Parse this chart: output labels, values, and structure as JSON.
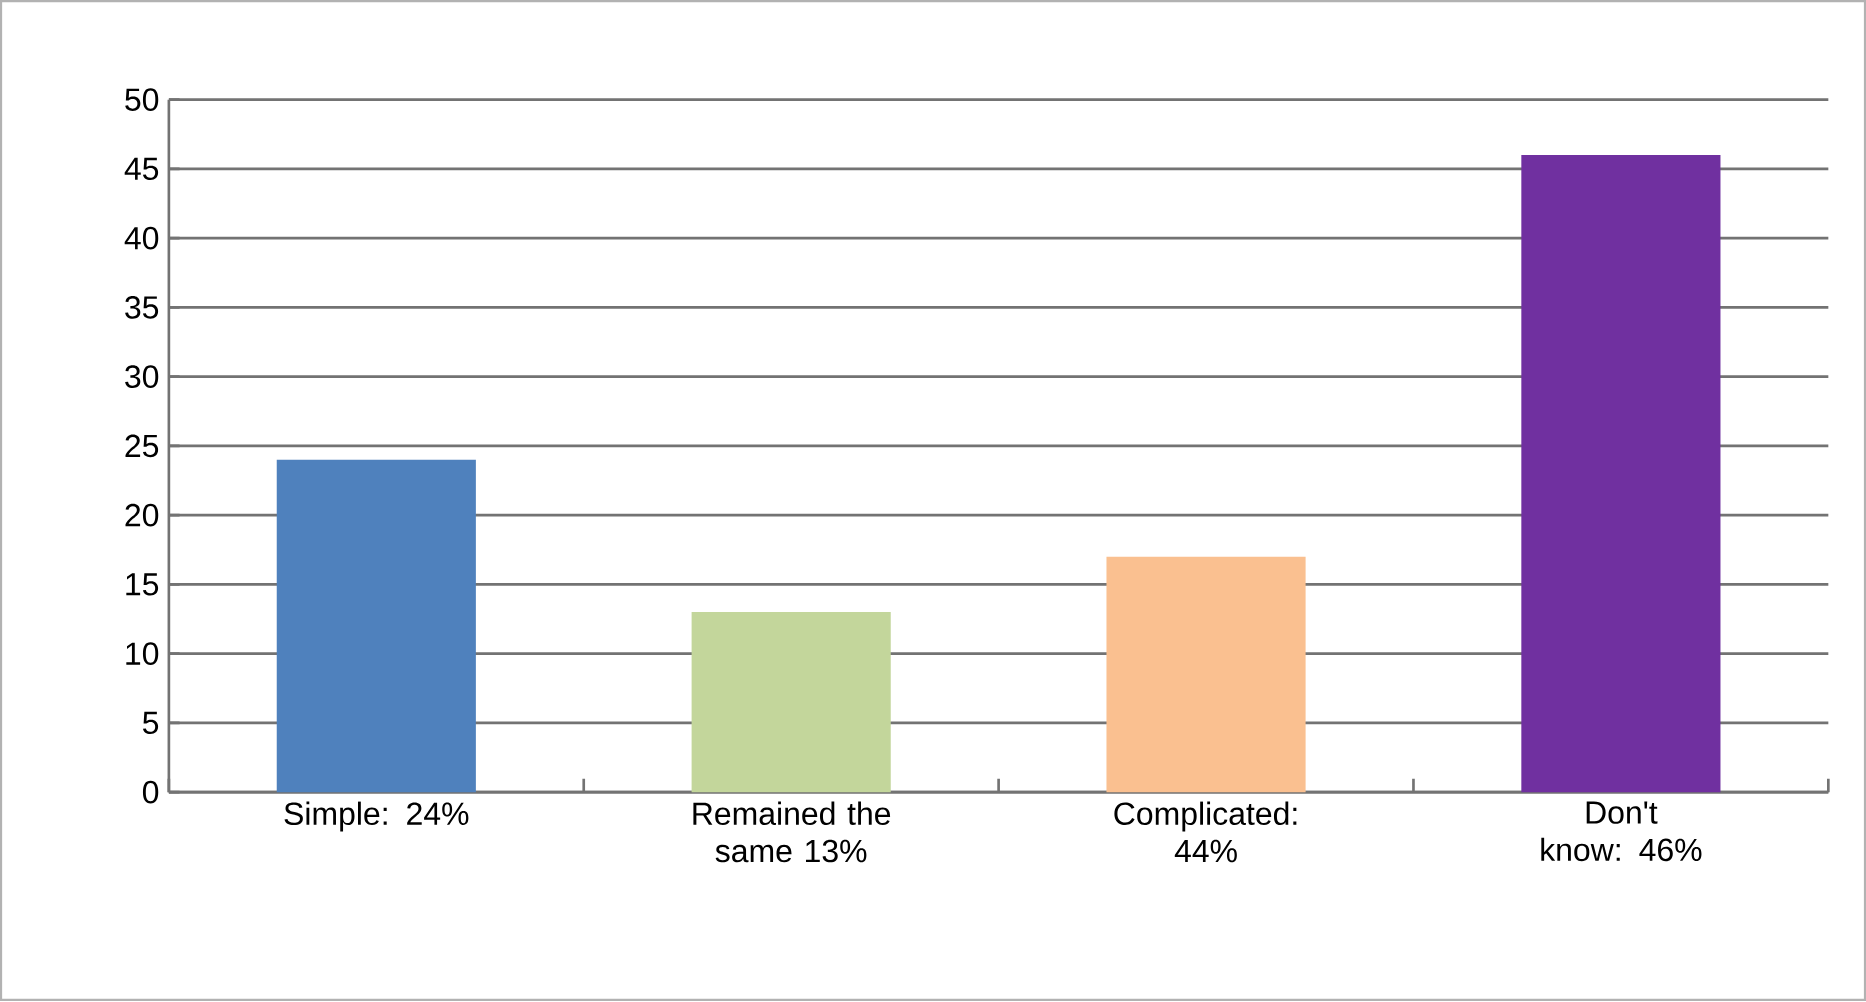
{
  "chart_data": {
    "type": "bar",
    "categories": [
      "Simple: 24%",
      "Remained the same 13%",
      "Complicated: 44%",
      "Don't know: 46%"
    ],
    "values": [
      24,
      13,
      17,
      46
    ],
    "colors": [
      "#4f81bd",
      "#c3d69b",
      "#fac090",
      "#7030a0"
    ],
    "ylim": [
      0,
      50
    ],
    "yticks": [
      0,
      5,
      10,
      15,
      20,
      25,
      30,
      35,
      40,
      45,
      50
    ],
    "grid": "y"
  }
}
